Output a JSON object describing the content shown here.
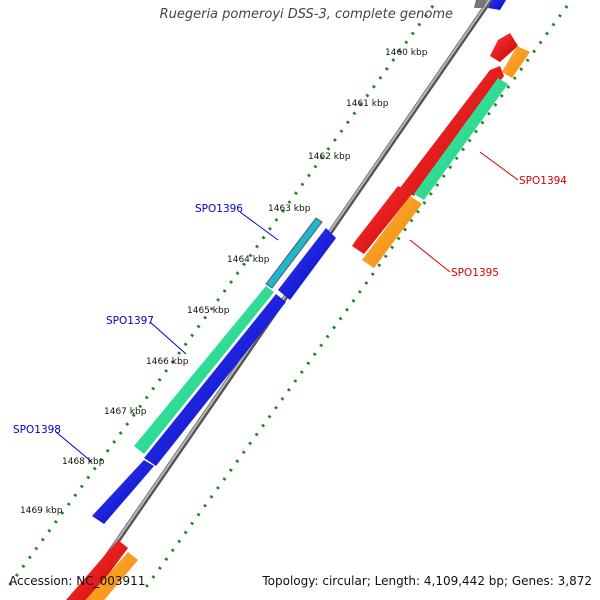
{
  "map": {
    "title": "Ruegeria pomeroyi DSS-3, complete genome",
    "accession_label": "Accession:",
    "accession": "NC_003911",
    "topology_text": "Topology: circular; Length: 4,109,442 bp; Genes: 3,872"
  },
  "ruler": {
    "labels": [
      "1460 kbp",
      "1461 kbp",
      "1462 kbp",
      "1463 kbp",
      "1464 kbp",
      "1465 kbp",
      "1466 kbp",
      "1467 kbp",
      "1468 kbp",
      "1469 kbp"
    ]
  },
  "genes": [
    {
      "name": "SPO1394",
      "strand": "reverse",
      "color": "#d40000"
    },
    {
      "name": "SPO1395",
      "strand": "reverse",
      "color": "#d40000"
    },
    {
      "name": "SPO1396",
      "strand": "forward",
      "color": "#0000cc"
    },
    {
      "name": "SPO1397",
      "strand": "forward",
      "color": "#0000cc"
    },
    {
      "name": "SPO1398",
      "strand": "forward",
      "color": "#0000cc"
    }
  ],
  "colors": {
    "backbone": "#7a7a7a",
    "forward_cds": "#0a14e0",
    "reverse_cds": "#ee1111",
    "rna": "#22e090",
    "orange_feature": "#ff9a14",
    "ruler_dots": "#1f8a1f"
  }
}
